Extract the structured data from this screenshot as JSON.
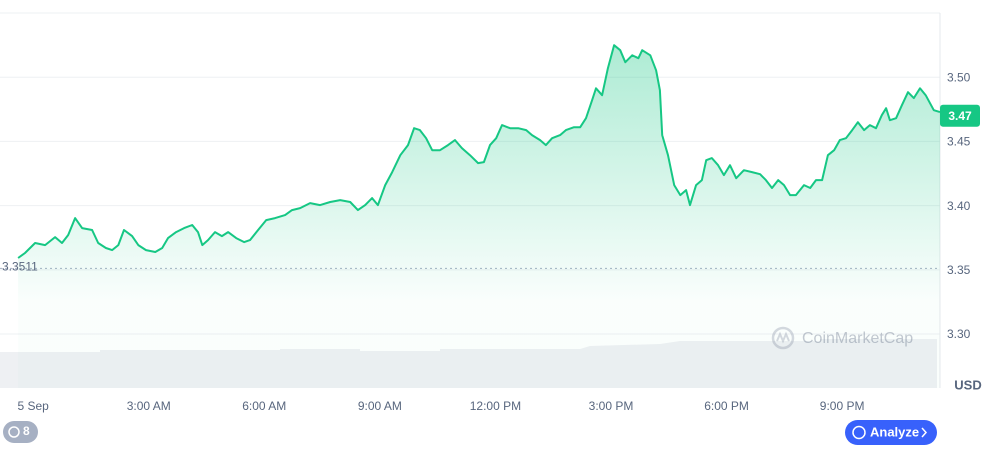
{
  "chart_data": {
    "type": "line",
    "color": "#16c784",
    "x": [
      -0.39,
      -0.21,
      0.05,
      0.31,
      0.57,
      0.75,
      0.91,
      1.09,
      1.27,
      1.53,
      1.69,
      1.89,
      2.05,
      2.21,
      2.36,
      2.57,
      2.73,
      2.93,
      3.17,
      3.35,
      3.5,
      3.71,
      3.92,
      4.13,
      4.28,
      4.39,
      4.54,
      4.72,
      4.9,
      5.06,
      5.27,
      5.48,
      5.63,
      5.84,
      6.05,
      6.28,
      6.54,
      6.72,
      6.93,
      7.19,
      7.45,
      7.71,
      7.97,
      8.23,
      8.43,
      8.62,
      8.8,
      8.95,
      9.14,
      9.32,
      9.53,
      9.73,
      9.89,
      10.04,
      10.2,
      10.36,
      10.56,
      10.77,
      10.95,
      11.13,
      11.34,
      11.55,
      11.7,
      11.86,
      12.02,
      12.17,
      12.38,
      12.59,
      12.8,
      12.95,
      13.16,
      13.31,
      13.47,
      13.68,
      13.83,
      14.04,
      14.2,
      14.35,
      14.51,
      14.61,
      14.77,
      14.92,
      15.08,
      15.24,
      15.37,
      15.55,
      15.71,
      15.81,
      16.02,
      16.17,
      16.27,
      16.33,
      16.48,
      16.64,
      16.8,
      16.95,
      17.05,
      17.21,
      17.36,
      17.47,
      17.62,
      17.78,
      17.93,
      18.09,
      18.25,
      18.45,
      18.66,
      18.87,
      19.02,
      19.18,
      19.34,
      19.49,
      19.65,
      19.8,
      20.01,
      20.17,
      20.32,
      20.48,
      20.63,
      20.79,
      20.94,
      21.1,
      21.26,
      21.41,
      21.57,
      21.72,
      21.88,
      22.03,
      22.14,
      22.24,
      22.4,
      22.55,
      22.71,
      22.86,
      23.02,
      23.17,
      23.38,
      23.54
    ],
    "values": [
      3.3592,
      3.3631,
      3.3709,
      3.3693,
      3.3755,
      3.3709,
      3.3771,
      3.3903,
      3.3825,
      3.381,
      3.3709,
      3.367,
      3.3654,
      3.3693,
      3.381,
      3.3763,
      3.3693,
      3.3654,
      3.3639,
      3.367,
      3.3747,
      3.3794,
      3.3825,
      3.3849,
      3.3794,
      3.3693,
      3.3732,
      3.3794,
      3.3763,
      3.3794,
      3.3747,
      3.3716,
      3.3732,
      3.381,
      3.3887,
      3.3903,
      3.3926,
      3.3965,
      3.3981,
      3.402,
      3.4004,
      3.4028,
      3.4043,
      3.4028,
      3.3965,
      3.4004,
      3.4059,
      3.4004,
      3.416,
      3.4261,
      3.4393,
      3.4471,
      3.4603,
      3.4588,
      3.4525,
      3.4432,
      3.4432,
      3.4471,
      3.451,
      3.4448,
      3.4393,
      3.4331,
      3.4339,
      3.4471,
      3.4525,
      3.4627,
      3.4603,
      3.4603,
      3.4588,
      3.4549,
      3.451,
      3.4471,
      3.4525,
      3.4549,
      3.4588,
      3.4611,
      3.4611,
      3.4681,
      3.4821,
      3.4914,
      3.486,
      3.507,
      3.5249,
      3.521,
      3.5117,
      3.5171,
      3.5148,
      3.521,
      3.5171,
      3.5054,
      3.4899,
      3.4549,
      3.4393,
      3.416,
      3.4082,
      3.4121,
      3.4004,
      3.416,
      3.4199,
      3.4354,
      3.437,
      3.4315,
      3.4238,
      3.4315,
      3.4214,
      3.4276,
      3.4261,
      3.4245,
      3.4199,
      3.4137,
      3.4199,
      3.416,
      3.4082,
      3.4082,
      3.416,
      3.4137,
      3.4199,
      3.4199,
      3.4393,
      3.4432,
      3.451,
      3.4525,
      3.4588,
      3.465,
      3.4588,
      3.4627,
      3.4603,
      3.4704,
      3.4759,
      3.4665,
      3.4681,
      3.4782,
      3.4883,
      3.4837,
      3.4914,
      3.486,
      3.4743,
      3.4728
    ],
    "xlim": [
      -0.86,
      23.54
    ],
    "xticks": [
      {
        "value": 0,
        "label": "5 Sep"
      },
      {
        "value": 3,
        "label": "3:00 AM"
      },
      {
        "value": 6,
        "label": "6:00 AM"
      },
      {
        "value": 9,
        "label": "9:00 AM"
      },
      {
        "value": 12,
        "label": "12:00 PM"
      },
      {
        "value": 15,
        "label": "3:00 PM"
      },
      {
        "value": 18,
        "label": "6:00 PM"
      },
      {
        "value": 21,
        "label": "9:00 PM"
      }
    ],
    "ylim": [
      3.258,
      3.55
    ],
    "yticks": [
      {
        "value": 3.3,
        "label": "3.30"
      },
      3.35,
      {
        "value": 3.4,
        "label": "3.40"
      },
      3.45,
      {
        "value": 3.5,
        "label": "3.50"
      }
    ],
    "grid": true,
    "reference_price": 3.3511,
    "current_price": 3.47,
    "currency_label": "USD",
    "watermark": "CoinMarketCap",
    "history_count": 8,
    "analyze_button": "Analyze"
  }
}
